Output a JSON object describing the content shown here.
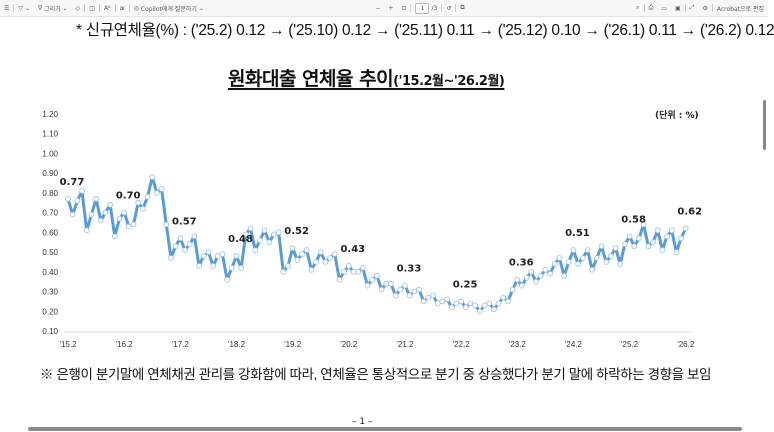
{
  "toolbar": {
    "draw_label": "그리기",
    "copilot_label": "Copilot에게 질문하기",
    "zoom_out": "−",
    "zoom_in": "+",
    "page_current": "1",
    "page_total": "/3",
    "acrobat_label": "Acrobat으로 편집",
    "icons": [
      "list-icon",
      "highlight-icon",
      "draw-icon",
      "eraser-icon",
      "page-view-icon",
      "text-size-icon",
      "immersive-reader-icon",
      "copilot-icon",
      "fit-page-icon",
      "rotate-icon",
      "two-page-icon",
      "search-icon",
      "print-icon",
      "save-icon",
      "save-as-icon",
      "fullscreen-icon",
      "settings-icon"
    ]
  },
  "document": {
    "note": "*  신규연체율(%) : ('25.2) 0.12 → ('25.10) 0.12 → ('25.11) 0.11 → ('25.12) 0.10 → ('26.1) 0.11 → ('26.2) 0.12",
    "title_main": "원화대출  연체율  추이",
    "title_period": "('15.2월~'26.2월)",
    "unit": "(단위 : %)",
    "footnote": "※ 은행이 분기말에 연체채권 관리를 강화함에 따라, 연체율은 통상적으로 분기 중 상승했다가 분기 말에 하락하는 경향을 보임",
    "page_number": "–  1  –"
  },
  "chart_data": {
    "type": "line",
    "title": "원화대출  연체율  추이('15.2월~'26.2월)",
    "ylabel": "(단위 : %)",
    "ylim": [
      0.1,
      1.2
    ],
    "yticks": [
      "1.20",
      "1.10",
      "1.00",
      "0.90",
      "0.80",
      "0.70",
      "0.60",
      "0.50",
      "0.40",
      "0.30",
      "0.20",
      "0.10"
    ],
    "xticks": [
      "'15.2",
      "'16.2",
      "'17.2",
      "'18.2",
      "'19.2",
      "'20.2",
      "'21.2",
      "'22.2",
      "'23.2",
      "'24.2",
      "'25.2",
      "'26.2"
    ],
    "x_start": "2015-02",
    "x_end": "2026-02",
    "frequency": "monthly",
    "grid": false,
    "color": "#5b9bd5",
    "values": [
      0.77,
      0.69,
      0.76,
      0.81,
      0.61,
      0.69,
      0.77,
      0.66,
      0.7,
      0.74,
      0.58,
      0.67,
      0.7,
      0.63,
      0.64,
      0.75,
      0.72,
      0.78,
      0.88,
      0.8,
      0.82,
      0.64,
      0.47,
      0.53,
      0.57,
      0.51,
      0.54,
      0.58,
      0.43,
      0.48,
      0.5,
      0.43,
      0.48,
      0.49,
      0.36,
      0.42,
      0.48,
      0.42,
      0.59,
      0.62,
      0.51,
      0.56,
      0.61,
      0.55,
      0.59,
      0.6,
      0.4,
      0.43,
      0.52,
      0.46,
      0.49,
      0.51,
      0.41,
      0.45,
      0.5,
      0.45,
      0.47,
      0.49,
      0.36,
      0.4,
      0.43,
      0.4,
      0.4,
      0.42,
      0.33,
      0.36,
      0.38,
      0.31,
      0.34,
      0.34,
      0.28,
      0.31,
      0.33,
      0.28,
      0.3,
      0.31,
      0.25,
      0.27,
      0.28,
      0.24,
      0.25,
      0.26,
      0.22,
      0.24,
      0.25,
      0.22,
      0.24,
      0.23,
      0.2,
      0.23,
      0.24,
      0.21,
      0.24,
      0.27,
      0.25,
      0.31,
      0.36,
      0.33,
      0.37,
      0.4,
      0.35,
      0.38,
      0.41,
      0.39,
      0.44,
      0.47,
      0.38,
      0.45,
      0.51,
      0.44,
      0.47,
      0.51,
      0.41,
      0.47,
      0.53,
      0.45,
      0.48,
      0.52,
      0.44,
      0.54,
      0.58,
      0.53,
      0.57,
      0.64,
      0.53,
      0.55,
      0.61,
      0.51,
      0.58,
      0.61,
      0.5,
      0.57,
      0.62
    ],
    "data_labels": [
      {
        "x": "'15.2",
        "index": 0,
        "text": "0.77"
      },
      {
        "x": "'16.2",
        "index": 12,
        "text": "0.70"
      },
      {
        "x": "'17.2",
        "index": 24,
        "text": "0.57"
      },
      {
        "x": "'18.2",
        "index": 36,
        "text": "0.48"
      },
      {
        "x": "'19.2",
        "index": 48,
        "text": "0.52"
      },
      {
        "x": "'20.2",
        "index": 60,
        "text": "0.43"
      },
      {
        "x": "'21.2",
        "index": 72,
        "text": "0.33"
      },
      {
        "x": "'22.2",
        "index": 84,
        "text": "0.25"
      },
      {
        "x": "'23.2",
        "index": 96,
        "text": "0.36"
      },
      {
        "x": "'24.2",
        "index": 108,
        "text": "0.51"
      },
      {
        "x": "'25.2",
        "index": 120,
        "text": "0.58"
      },
      {
        "x": "'26.2",
        "index": 132,
        "text": "0.62"
      }
    ]
  }
}
